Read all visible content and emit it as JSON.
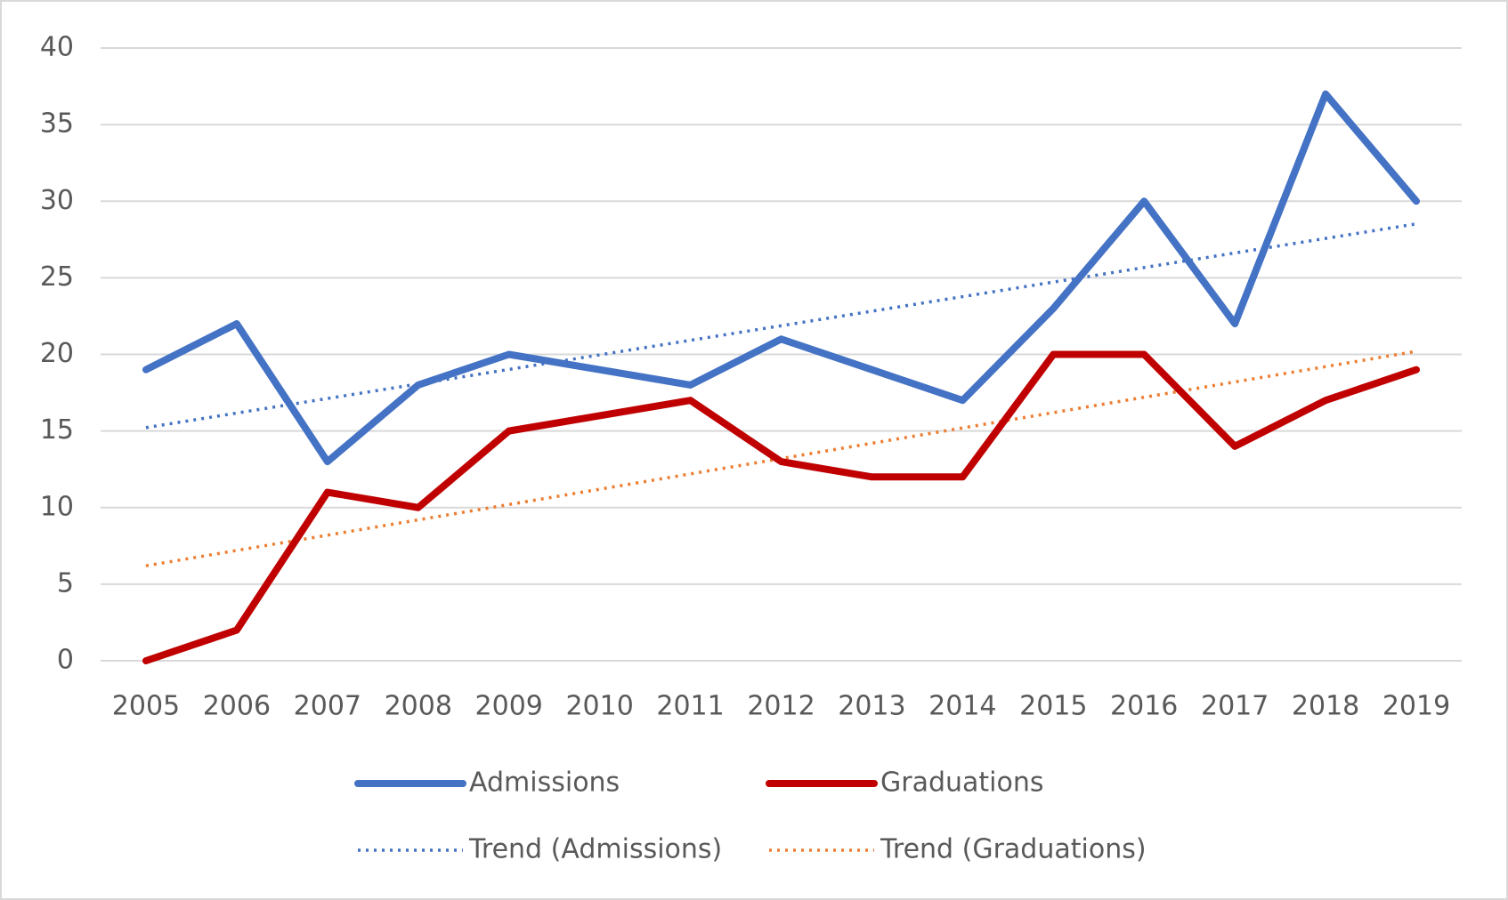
{
  "chart_data": {
    "type": "line",
    "categories": [
      "2005",
      "2006",
      "2007",
      "2008",
      "2009",
      "2010",
      "2011",
      "2012",
      "2013",
      "2014",
      "2015",
      "2016",
      "2017",
      "2018",
      "2019"
    ],
    "series": [
      {
        "name": "Admissions",
        "color": "#4472c4",
        "style": "solid",
        "values": [
          19,
          22,
          13,
          18,
          20,
          19,
          18,
          21,
          19,
          17,
          23,
          30,
          22,
          37,
          30
        ]
      },
      {
        "name": "Graduations",
        "color": "#c00000",
        "style": "solid",
        "values": [
          0,
          2,
          11,
          10,
          15,
          16,
          17,
          13,
          12,
          12,
          20,
          20,
          14,
          17,
          19
        ]
      },
      {
        "name": "Trend (Admissions)",
        "color": "#4472c4",
        "style": "dotted",
        "values": [
          15.22,
          16.17,
          17.12,
          18.07,
          19.02,
          19.97,
          20.92,
          21.87,
          22.82,
          23.77,
          24.72,
          25.67,
          26.62,
          27.57,
          28.52
        ]
      },
      {
        "name": "Trend (Graduations)",
        "color": "#ed7d31",
        "style": "dotted",
        "values": [
          6.2,
          7.2,
          8.2,
          9.2,
          10.2,
          11.2,
          12.2,
          13.2,
          14.2,
          15.2,
          16.2,
          17.2,
          18.2,
          19.2,
          20.2
        ]
      }
    ],
    "ylim": [
      0,
      40
    ],
    "yticks": [
      0,
      5,
      10,
      15,
      20,
      25,
      30,
      35,
      40
    ],
    "grid": true,
    "legend": "bottom"
  }
}
